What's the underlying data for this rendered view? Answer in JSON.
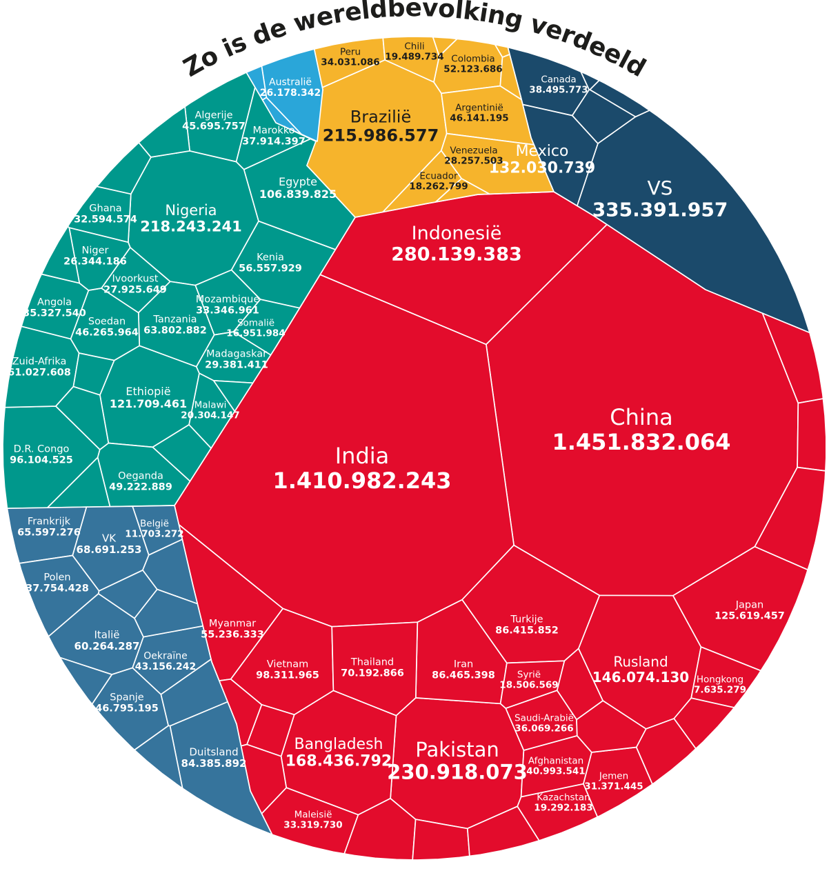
{
  "title": "Zo is de wereldbevolking verdeeld",
  "colors": {
    "background": "#ffffff",
    "title_text": "#1d1d1b",
    "cell_border": "#ffffff",
    "asia": "#e30c2c",
    "africa": "#00988c",
    "north_america": "#1b4a6b",
    "south_america": "#f6b42c",
    "europe": "#36749c",
    "oceania": "#2aa6d9",
    "label_light": "#ffffff",
    "label_dark": "#1d1d1b"
  },
  "chart_data": {
    "type": "voronoi-treemap",
    "shape": "circle",
    "title": "Zo is de wereldbevolking verdeeld",
    "grouping": "continent",
    "value_meaning": "population (inhabitants)",
    "legend": "none",
    "continents": [
      {
        "id": "asia",
        "color": "#e30c2c",
        "label_color": "#ffffff",
        "countries": [
          {
            "name": "China",
            "value": "1.451.832.064"
          },
          {
            "name": "India",
            "value": "1.410.982.243"
          },
          {
            "name": "Indonesië",
            "value": "280.139.383"
          },
          {
            "name": "Pakistan",
            "value": "230.918.073"
          },
          {
            "name": "Bangladesh",
            "value": "168.436.792"
          },
          {
            "name": "Rusland",
            "value": "146.074.130"
          },
          {
            "name": "Japan",
            "value": "125.619.457"
          },
          {
            "name": "Vietnam",
            "value": "98.311.965"
          },
          {
            "name": "Iran",
            "value": "86.465.398"
          },
          {
            "name": "Turkije",
            "value": "86.415.852"
          },
          {
            "name": "Thailand",
            "value": "70.192.866"
          },
          {
            "name": "Myanmar",
            "value": "55.236.333"
          },
          {
            "name": "Afghanistan",
            "value": "40.993.541"
          },
          {
            "name": "Saudi-Arabië",
            "value": "36.069.266"
          },
          {
            "name": "Maleisië",
            "value": "33.319.730"
          },
          {
            "name": "Jemen",
            "value": "31.371.445"
          },
          {
            "name": "Kazachstan",
            "value": "19.292.183"
          },
          {
            "name": "Syrië",
            "value": "18.506.569"
          },
          {
            "name": "Hongkong",
            "value": "7.635.279"
          }
        ]
      },
      {
        "id": "africa",
        "color": "#00988c",
        "label_color": "#ffffff",
        "countries": [
          {
            "name": "Nigeria",
            "value": "218.243.241"
          },
          {
            "name": "Ethiopië",
            "value": "121.709.461"
          },
          {
            "name": "Egypte",
            "value": "106.839.825"
          },
          {
            "name": "D.R. Congo",
            "value": "96.104.525"
          },
          {
            "name": "Tanzania",
            "value": "63.802.882"
          },
          {
            "name": "Zuid-Afrika",
            "value": "61.027.608"
          },
          {
            "name": "Kenia",
            "value": "56.557.929"
          },
          {
            "name": "Oeganda",
            "value": "49.222.889"
          },
          {
            "name": "Soedan",
            "value": "46.265.964"
          },
          {
            "name": "Algerije",
            "value": "45.695.757"
          },
          {
            "name": "Marokko",
            "value": "37.914.397"
          },
          {
            "name": "Angola",
            "value": "35.327.540"
          },
          {
            "name": "Mozambique",
            "value": "33.346.961"
          },
          {
            "name": "Ghana",
            "value": "32.594.574"
          },
          {
            "name": "Madagaskar",
            "value": "29.381.411"
          },
          {
            "name": "Ivoorkust",
            "value": "27.925.649"
          },
          {
            "name": "Niger",
            "value": "26.344.186"
          },
          {
            "name": "Malawi",
            "value": "20.304.147"
          },
          {
            "name": "Somalië",
            "value": "16.951.984"
          }
        ]
      },
      {
        "id": "north_america",
        "color": "#1b4a6b",
        "label_color": "#ffffff",
        "countries": [
          {
            "name": "VS",
            "value": "335.391.957"
          },
          {
            "name": "Mexico",
            "value": "132.030.739"
          },
          {
            "name": "Canada",
            "value": "38.495.773"
          }
        ]
      },
      {
        "id": "south_america",
        "color": "#f6b42c",
        "label_color": "#1d1d1b",
        "countries": [
          {
            "name": "Brazilië",
            "value": "215.986.577"
          },
          {
            "name": "Colombia",
            "value": "52.123.686"
          },
          {
            "name": "Argentinië",
            "value": "46.141.195"
          },
          {
            "name": "Peru",
            "value": "34.031.086"
          },
          {
            "name": "Venezuela",
            "value": "28.257.503"
          },
          {
            "name": "Chili",
            "value": "19.489.734"
          },
          {
            "name": "Ecuador",
            "value": "18.262.799"
          }
        ]
      },
      {
        "id": "europe",
        "color": "#36749c",
        "label_color": "#ffffff",
        "countries": [
          {
            "name": "Duitsland",
            "value": "84.385.892"
          },
          {
            "name": "VK",
            "value": "68.691.253"
          },
          {
            "name": "Frankrijk",
            "value": "65.597.276"
          },
          {
            "name": "Italië",
            "value": "60.264.287"
          },
          {
            "name": "Spanje",
            "value": "46.795.195"
          },
          {
            "name": "Oekraïne",
            "value": "43.156.242"
          },
          {
            "name": "Polen",
            "value": "37.754.428"
          },
          {
            "name": "België",
            "value": "11.703.272"
          }
        ]
      },
      {
        "id": "oceania",
        "color": "#2aa6d9",
        "label_color": "#ffffff",
        "countries": [
          {
            "name": "Australië",
            "value": "26.178.342"
          }
        ]
      }
    ]
  }
}
